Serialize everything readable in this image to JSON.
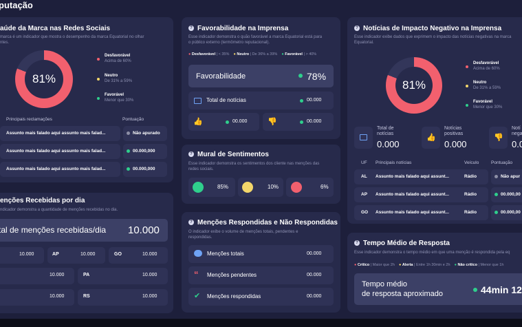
{
  "page_title": "putação",
  "colors": {
    "neg": "#f2606e",
    "neu": "#f3d66a",
    "pos": "#2fcf8c",
    "grey": "#8d8fa6",
    "bg": "#1d1f3b",
    "card": "#272a4b"
  },
  "c1": {
    "title": "aúde da Marca nas Redes Sociais",
    "desc1": "marca é um indicador que mostra o desempenho da marca Equatorial no olhar",
    "desc2": "ntes.",
    "ring_value": "81%",
    "ring_fraction": 0.81,
    "legend": [
      {
        "t": "Desfavorável",
        "s": "Acima de 60%"
      },
      {
        "t": "Neutro",
        "s": "De 31% a 59%"
      },
      {
        "t": "Favorável",
        "s": "Menor que 30%"
      }
    ],
    "col1": "Principais reclamações",
    "col2": "Pontuação",
    "rows": [
      {
        "text": "Assunto mais falado aqui assunto mais falad...",
        "value": "Não apurado"
      },
      {
        "text": "Assunto mais falado aqui assunto mais falad...",
        "value": "00.000,000"
      },
      {
        "text": "Assunto mais falado aqui assunto mais falad...",
        "value": "00.000,000"
      }
    ]
  },
  "c2": {
    "title": "Favorabilidade na Imprensa",
    "desc1": "Esse indicador demonstra o quão favorável a marca Equatorial está para",
    "desc2": "o público externo (termômetro reputacional).",
    "scale": [
      {
        "t": "Desfavorável",
        "s": "< 35%"
      },
      {
        "t": "Neutro",
        "s": "De 36% a 39%"
      },
      {
        "t": "Favorável",
        "s": "> 40%"
      }
    ],
    "fav_label": "Favorabilidade",
    "fav_value": "78%",
    "total_label": "Total de notícias",
    "total_value": "00.000",
    "pos_value": "00.000",
    "neg_value": "00.000"
  },
  "c3": {
    "title": "Notícias de Impacto Negativo na Imprensa",
    "desc1": "Esse indicador exibe dados que exprimem o impacto das notícias negativas na marca",
    "desc2": "Equatorial.",
    "ring_value": "81%",
    "ring_fraction": 0.81,
    "legend": [
      {
        "t": "Desfavorável",
        "s": "Acima de 60%"
      },
      {
        "t": "Neutro",
        "s": "De 31% a 59%"
      },
      {
        "t": "Favorável",
        "s": "Menor que 30%"
      }
    ],
    "stats": [
      {
        "l1": "Total de",
        "l2": "notícias",
        "v": "0.000"
      },
      {
        "l1": "Notícias",
        "l2": "positivas",
        "v": "0.000"
      },
      {
        "l1": "Notí",
        "l2": "nega",
        "v": "0.00"
      }
    ],
    "headers": [
      "UF",
      "Principais notícias",
      "Veículo",
      "Pontuação"
    ],
    "rows": [
      {
        "uf": "AL",
        "news": "Assunto mais falado aqui assunt...",
        "veh": "Rádio",
        "score": "Não apur"
      },
      {
        "uf": "AP",
        "news": "Assunto mais falado aqui assunt...",
        "veh": "Rádio",
        "score": "00.000,00"
      },
      {
        "uf": "GO",
        "news": "Assunto mais falado aqui assunt...",
        "veh": "Rádio",
        "score": "00.000,00"
      }
    ]
  },
  "c4": {
    "title": "Mural de Sentimentos",
    "desc1": "Esse indicador demonstra os sentimentos dos cliente nas menções das",
    "desc2": "redes sociais.",
    "happy": "85%",
    "neutral": "10%",
    "angry": "6%"
  },
  "c5": {
    "title": "enções Recebidas por dia",
    "desc1": "ndicador demonstra a quantidade de menções recebidas no dia.",
    "big_label": "tal de menções recebidas/dia",
    "big_value": "10.000",
    "grid": [
      [
        "",
        "10.000",
        "AP",
        "10.000",
        "GO",
        "10.000"
      ],
      [
        "",
        "10.000",
        "PA",
        "10.000",
        "",
        ""
      ],
      [
        "",
        "10.000",
        "RS",
        "10.000",
        "",
        ""
      ]
    ]
  },
  "c6": {
    "title": "Menções Respondidas e Não Respondidas",
    "desc1": "O indicador exibe o volume de menções totais, pendentes e",
    "desc2": "respondidas.",
    "rows": [
      {
        "label": "Menções totais",
        "value": "00.000"
      },
      {
        "label": "Menções pendentes",
        "value": "00.000"
      },
      {
        "label": "Menções respondidas",
        "value": "00.000"
      }
    ]
  },
  "c7": {
    "title": "Tempo Médio de Resposta",
    "desc1": "Esse indicador demonstra o tempo médio em que uma menção é respondida pela eq",
    "scale": [
      {
        "t": "Crítico",
        "s": "Maior que 2h"
      },
      {
        "t": "Alerta",
        "s": "Entre 1h 30min e 2h"
      },
      {
        "t": "Não crítico",
        "s": "Menor que 1h"
      }
    ],
    "label1": "Tempo médio",
    "label2": "de resposta aproximado",
    "value": "44min 12"
  }
}
